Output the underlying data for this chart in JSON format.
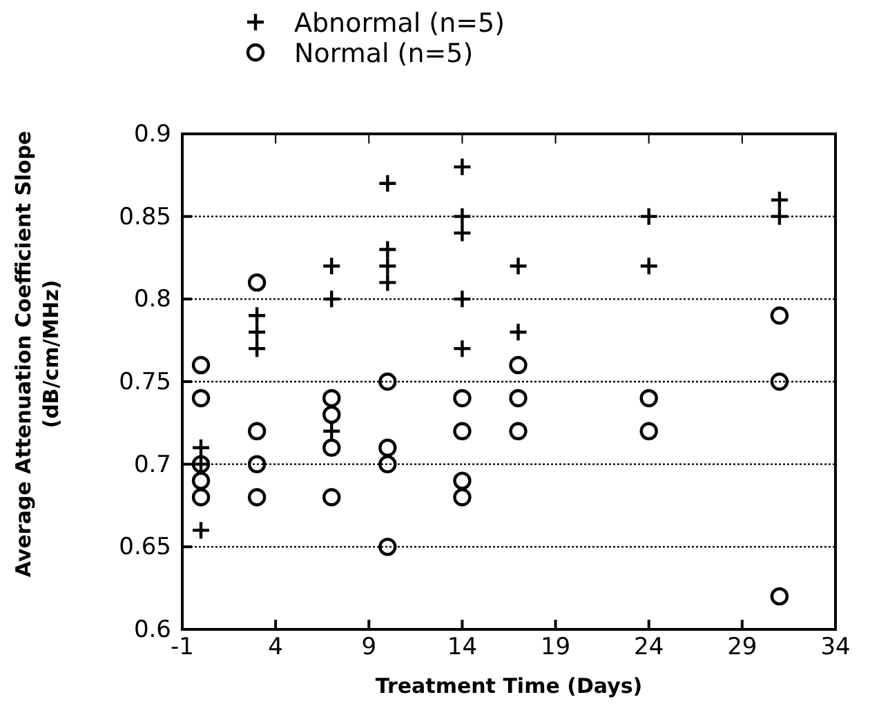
{
  "chart_data": {
    "type": "scatter",
    "xlabel": "Treatment Time (Days)",
    "ylabel": "Average Attenuation Coefficient Slope\n(dB/cm/MHz)",
    "xlim": [
      -1,
      34
    ],
    "xticks": [
      -1,
      4,
      9,
      14,
      19,
      24,
      29,
      34
    ],
    "ylim": [
      0.6,
      0.9
    ],
    "yticks": [
      0.6,
      0.65,
      0.7,
      0.75,
      0.8,
      0.85,
      0.9
    ],
    "grid": "y",
    "legend": "top left",
    "series": [
      {
        "name": "Abnormal (n=5)",
        "color": "#000000",
        "marker": "cross",
        "x": [
          0,
          0,
          0,
          3,
          3,
          3,
          7,
          7,
          7,
          10,
          10,
          10,
          10,
          14,
          14,
          14,
          14,
          14,
          17,
          17,
          24,
          24,
          31,
          31
        ],
        "values": [
          0.71,
          0.7,
          0.66,
          0.79,
          0.78,
          0.77,
          0.82,
          0.8,
          0.72,
          0.87,
          0.83,
          0.82,
          0.81,
          0.88,
          0.85,
          0.84,
          0.8,
          0.77,
          0.82,
          0.78,
          0.85,
          0.82,
          0.86,
          0.85
        ]
      },
      {
        "name": "Normal (n=5)",
        "color": "#000000",
        "marker": "circle",
        "x": [
          0,
          0,
          0,
          0,
          0,
          3,
          3,
          3,
          3,
          7,
          7,
          7,
          7,
          10,
          10,
          10,
          10,
          14,
          14,
          14,
          14,
          17,
          17,
          17,
          24,
          24,
          31,
          31,
          31
        ],
        "values": [
          0.76,
          0.74,
          0.7,
          0.69,
          0.68,
          0.81,
          0.72,
          0.7,
          0.68,
          0.74,
          0.73,
          0.71,
          0.68,
          0.75,
          0.71,
          0.7,
          0.65,
          0.74,
          0.72,
          0.69,
          0.68,
          0.76,
          0.74,
          0.72,
          0.74,
          0.72,
          0.79,
          0.75,
          0.62
        ]
      }
    ]
  }
}
